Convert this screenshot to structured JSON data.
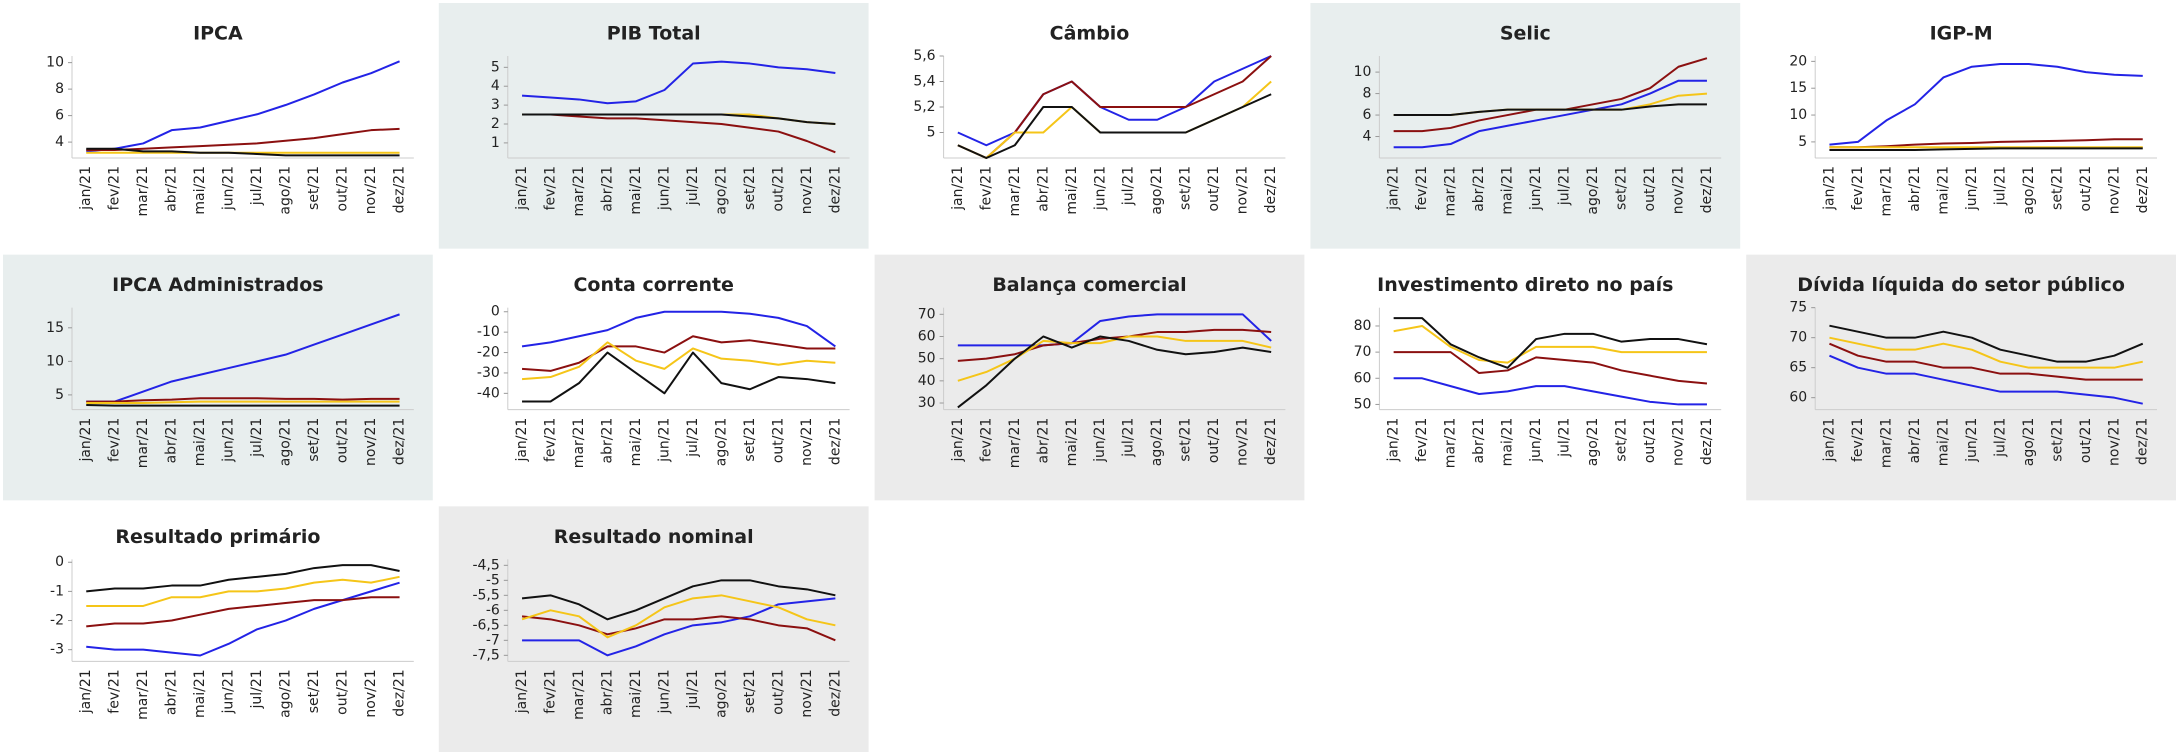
{
  "chart_data": [
    {
      "type": "line",
      "title": "IPCA",
      "categories": [
        "jan/21",
        "fev/21",
        "mar/21",
        "abr/21",
        "mai/21",
        "jun/21",
        "jul/21",
        "ago/21",
        "set/21",
        "out/21",
        "nov/21",
        "dez/21"
      ],
      "ylim": [
        2.8,
        10.5
      ],
      "yticks": [
        4,
        6,
        8,
        10
      ],
      "series": [
        {
          "color": "#2323e6",
          "values": [
            3.3,
            3.5,
            3.9,
            4.9,
            5.1,
            5.6,
            6.1,
            6.8,
            7.6,
            8.5,
            9.2,
            10.1
          ]
        },
        {
          "color": "#8b1010",
          "values": [
            3.4,
            3.4,
            3.5,
            3.6,
            3.7,
            3.8,
            3.9,
            4.1,
            4.3,
            4.6,
            4.9,
            5.0
          ]
        },
        {
          "color": "#f5c518",
          "values": [
            3.2,
            3.2,
            3.2,
            3.2,
            3.2,
            3.2,
            3.2,
            3.2,
            3.2,
            3.2,
            3.2,
            3.2
          ]
        },
        {
          "color": "#111111",
          "values": [
            3.5,
            3.5,
            3.3,
            3.3,
            3.2,
            3.2,
            3.1,
            3.0,
            3.0,
            3.0,
            3.0,
            3.0
          ]
        }
      ]
    },
    {
      "type": "line",
      "title": "PIB Total",
      "background": "#e8eeee",
      "categories": [
        "jan/21",
        "fev/21",
        "mar/21",
        "abr/21",
        "mai/21",
        "jun/21",
        "jul/21",
        "ago/21",
        "set/21",
        "out/21",
        "nov/21",
        "dez/21"
      ],
      "ylim": [
        0.2,
        5.6
      ],
      "yticks": [
        1,
        2,
        3,
        4,
        5
      ],
      "series": [
        {
          "color": "#2323e6",
          "values": [
            3.5,
            3.4,
            3.3,
            3.1,
            3.2,
            3.8,
            5.2,
            5.3,
            5.2,
            5.0,
            4.9,
            4.7
          ]
        },
        {
          "color": "#8b1010",
          "values": [
            2.5,
            2.5,
            2.4,
            2.3,
            2.3,
            2.2,
            2.1,
            2.0,
            1.8,
            1.6,
            1.1,
            0.5
          ]
        },
        {
          "color": "#f5c518",
          "values": [
            2.5,
            2.5,
            2.5,
            2.5,
            2.5,
            2.5,
            2.5,
            2.5,
            2.5,
            2.3,
            2.1,
            2.0
          ]
        },
        {
          "color": "#111111",
          "values": [
            2.5,
            2.5,
            2.5,
            2.5,
            2.5,
            2.5,
            2.5,
            2.5,
            2.4,
            2.3,
            2.1,
            2.0
          ]
        }
      ]
    },
    {
      "type": "line",
      "title": "Câmbio",
      "categories": [
        "jan/21",
        "fev/21",
        "mar/21",
        "abr/21",
        "mai/21",
        "jun/21",
        "jul/21",
        "ago/21",
        "set/21",
        "out/21",
        "nov/21",
        "dez/21"
      ],
      "ylim": [
        4.8,
        5.6
      ],
      "yticks": [
        5,
        {
          "value": 5.2,
          "label": "5,2"
        },
        {
          "value": 5.4,
          "label": "5,4"
        },
        {
          "value": 5.6,
          "label": "5,6"
        }
      ],
      "series": [
        {
          "color": "#2323e6",
          "values": [
            5.0,
            4.9,
            5.0,
            5.3,
            5.4,
            5.2,
            5.1,
            5.1,
            5.2,
            5.4,
            5.5,
            5.6
          ]
        },
        {
          "color": "#8b1010",
          "values": [
            4.9,
            4.8,
            5.0,
            5.3,
            5.4,
            5.2,
            5.2,
            5.2,
            5.2,
            5.3,
            5.4,
            5.6
          ]
        },
        {
          "color": "#f5c518",
          "values": [
            4.9,
            4.8,
            5.0,
            5.0,
            5.2,
            5.0,
            5.0,
            5.0,
            5.0,
            5.1,
            5.2,
            5.4
          ]
        },
        {
          "color": "#111111",
          "values": [
            4.9,
            4.8,
            4.9,
            5.2,
            5.2,
            5.0,
            5.0,
            5.0,
            5.0,
            5.1,
            5.2,
            5.3
          ]
        }
      ]
    },
    {
      "type": "line",
      "title": "Selic",
      "background": "#e8eeee",
      "categories": [
        "jan/21",
        "fev/21",
        "mar/21",
        "abr/21",
        "mai/21",
        "jun/21",
        "jul/21",
        "ago/21",
        "set/21",
        "out/21",
        "nov/21",
        "dez/21"
      ],
      "ylim": [
        2,
        11.5
      ],
      "yticks": [
        4,
        6,
        8,
        10
      ],
      "series": [
        {
          "color": "#2323e6",
          "values": [
            3.0,
            3.0,
            3.3,
            4.5,
            5.0,
            5.5,
            6.0,
            6.5,
            7.0,
            8.0,
            9.2,
            9.2
          ]
        },
        {
          "color": "#8b1010",
          "values": [
            4.5,
            4.5,
            4.8,
            5.5,
            6.0,
            6.5,
            6.5,
            7.0,
            7.5,
            8.5,
            10.5,
            11.3
          ]
        },
        {
          "color": "#f5c518",
          "values": [
            6.0,
            6.0,
            6.0,
            6.3,
            6.5,
            6.5,
            6.5,
            6.5,
            6.5,
            7.0,
            7.8,
            8.0
          ]
        },
        {
          "color": "#111111",
          "values": [
            6.0,
            6.0,
            6.0,
            6.3,
            6.5,
            6.5,
            6.5,
            6.5,
            6.5,
            6.8,
            7.0,
            7.0
          ]
        }
      ]
    },
    {
      "type": "line",
      "title": "IGP-M",
      "categories": [
        "jan/21",
        "fev/21",
        "mar/21",
        "abr/21",
        "mai/21",
        "jun/21",
        "jul/21",
        "ago/21",
        "set/21",
        "out/21",
        "nov/21",
        "dez/21"
      ],
      "ylim": [
        2,
        21
      ],
      "yticks": [
        5,
        10,
        15,
        20
      ],
      "series": [
        {
          "color": "#2323e6",
          "values": [
            4.5,
            5.0,
            9,
            12,
            17,
            19,
            19.5,
            19.5,
            19,
            18,
            17.5,
            17.3
          ]
        },
        {
          "color": "#8b1010",
          "values": [
            4,
            4,
            4.2,
            4.5,
            4.7,
            4.8,
            5,
            5.1,
            5.2,
            5.3,
            5.5,
            5.5
          ]
        },
        {
          "color": "#f5c518",
          "values": [
            4,
            4,
            4,
            4,
            4,
            4,
            4,
            4,
            4,
            4,
            4,
            4
          ]
        },
        {
          "color": "#111111",
          "values": [
            3.5,
            3.5,
            3.5,
            3.5,
            3.6,
            3.7,
            3.8,
            3.8,
            3.8,
            3.8,
            3.8,
            3.8
          ]
        }
      ]
    },
    {
      "type": "line",
      "title": "IPCA Administrados",
      "background": "#e8eeee",
      "categories": [
        "jan/21",
        "fev/21",
        "mar/21",
        "abr/21",
        "mai/21",
        "jun/21",
        "jul/21",
        "ago/21",
        "set/21",
        "out/21",
        "nov/21",
        "dez/21"
      ],
      "ylim": [
        2.8,
        18
      ],
      "yticks": [
        5,
        10,
        15
      ],
      "series": [
        {
          "color": "#2323e6",
          "values": [
            4,
            4,
            5.5,
            7,
            8,
            9,
            10,
            11,
            12.5,
            14,
            15.5,
            17
          ]
        },
        {
          "color": "#8b1010",
          "values": [
            4,
            4,
            4.2,
            4.3,
            4.5,
            4.5,
            4.5,
            4.4,
            4.4,
            4.3,
            4.4,
            4.4
          ]
        },
        {
          "color": "#f5c518",
          "values": [
            3.8,
            3.8,
            3.8,
            3.9,
            4,
            4,
            4,
            4,
            4,
            4,
            4,
            4
          ]
        },
        {
          "color": "#111111",
          "values": [
            3.5,
            3.4,
            3.4,
            3.4,
            3.4,
            3.4,
            3.4,
            3.4,
            3.4,
            3.4,
            3.4,
            3.4
          ]
        }
      ]
    },
    {
      "type": "line",
      "title": "Conta corrente",
      "categories": [
        "jan/21",
        "fev/21",
        "mar/21",
        "abr/21",
        "mai/21",
        "jun/21",
        "jul/21",
        "ago/21",
        "set/21",
        "out/21",
        "nov/21",
        "dez/21"
      ],
      "ylim": [
        -48,
        2
      ],
      "yticks": [
        -40,
        -30,
        -20,
        -10,
        0
      ],
      "series": [
        {
          "color": "#2323e6",
          "values": [
            -17,
            -15,
            -12,
            -9,
            -3,
            0,
            0,
            0,
            -1,
            -3,
            -7,
            -17
          ]
        },
        {
          "color": "#8b1010",
          "values": [
            -28,
            -29,
            -25,
            -17,
            -17,
            -20,
            -12,
            -15,
            -14,
            -16,
            -18,
            -18
          ]
        },
        {
          "color": "#f5c518",
          "values": [
            -33,
            -32,
            -27,
            -15,
            -24,
            -28,
            -18,
            -23,
            -24,
            -26,
            -24,
            -25
          ]
        },
        {
          "color": "#111111",
          "values": [
            -44,
            -44,
            -35,
            -20,
            -30,
            -40,
            -20,
            -35,
            -38,
            -32,
            -33,
            -35
          ]
        }
      ]
    },
    {
      "type": "line",
      "title": "Balança comercial",
      "background": "#ebebeb",
      "categories": [
        "jan/21",
        "fev/21",
        "mar/21",
        "abr/21",
        "mai/21",
        "jun/21",
        "jul/21",
        "ago/21",
        "set/21",
        "out/21",
        "nov/21",
        "dez/21"
      ],
      "ylim": [
        27,
        73
      ],
      "yticks": [
        30,
        40,
        50,
        60,
        70
      ],
      "series": [
        {
          "color": "#2323e6",
          "values": [
            56,
            56,
            56,
            56,
            57,
            67,
            69,
            70,
            70,
            70,
            70,
            58
          ]
        },
        {
          "color": "#8b1010",
          "values": [
            49,
            50,
            52,
            56,
            57,
            59,
            60,
            62,
            62,
            63,
            63,
            62
          ]
        },
        {
          "color": "#f5c518",
          "values": [
            40,
            44,
            50,
            58,
            57,
            57,
            60,
            60,
            58,
            58,
            58,
            55
          ]
        },
        {
          "color": "#111111",
          "values": [
            28,
            38,
            50,
            60,
            55,
            60,
            58,
            54,
            52,
            53,
            55,
            53
          ]
        }
      ]
    },
    {
      "type": "line",
      "title": "Investimento direto no país",
      "categories": [
        "jan/21",
        "fev/21",
        "mar/21",
        "abr/21",
        "mai/21",
        "jun/21",
        "jul/21",
        "ago/21",
        "set/21",
        "out/21",
        "nov/21",
        "dez/21"
      ],
      "ylim": [
        48,
        87
      ],
      "yticks": [
        50,
        60,
        70,
        80
      ],
      "series": [
        {
          "color": "#2323e6",
          "values": [
            60,
            60,
            57,
            54,
            55,
            57,
            57,
            55,
            53,
            51,
            50,
            50
          ]
        },
        {
          "color": "#8b1010",
          "values": [
            70,
            70,
            70,
            62,
            63,
            68,
            67,
            66,
            63,
            61,
            59,
            58
          ]
        },
        {
          "color": "#f5c518",
          "values": [
            78,
            80,
            72,
            67,
            66,
            72,
            72,
            72,
            70,
            70,
            70,
            70
          ]
        },
        {
          "color": "#111111",
          "values": [
            83,
            83,
            73,
            68,
            64,
            75,
            77,
            77,
            74,
            75,
            75,
            73
          ]
        }
      ]
    },
    {
      "type": "line",
      "title": "Dívida líquida do setor público",
      "background": "#ebebeb",
      "categories": [
        "jan/21",
        "fev/21",
        "mar/21",
        "abr/21",
        "mai/21",
        "jun/21",
        "jul/21",
        "ago/21",
        "set/21",
        "out/21",
        "nov/21",
        "dez/21"
      ],
      "ylim": [
        58,
        75
      ],
      "yticks": [
        60,
        65,
        70,
        75
      ],
      "series": [
        {
          "color": "#2323e6",
          "values": [
            67,
            65,
            64,
            64,
            63,
            62,
            61,
            61,
            61,
            60.5,
            60,
            59
          ]
        },
        {
          "color": "#8b1010",
          "values": [
            69,
            67,
            66,
            66,
            65,
            65,
            64,
            64,
            63.5,
            63,
            63,
            63
          ]
        },
        {
          "color": "#f5c518",
          "values": [
            70,
            69,
            68,
            68,
            69,
            68,
            66,
            65,
            65,
            65,
            65,
            66
          ]
        },
        {
          "color": "#111111",
          "values": [
            72,
            71,
            70,
            70,
            71,
            70,
            68,
            67,
            66,
            66,
            67,
            69
          ]
        }
      ]
    },
    {
      "type": "line",
      "title": "Resultado primário",
      "categories": [
        "jan/21",
        "fev/21",
        "mar/21",
        "abr/21",
        "mai/21",
        "jun/21",
        "jul/21",
        "ago/21",
        "set/21",
        "out/21",
        "nov/21",
        "dez/21"
      ],
      "ylim": [
        -3.4,
        0.1
      ],
      "yticks": [
        -3,
        -2,
        -1,
        0
      ],
      "series": [
        {
          "color": "#2323e6",
          "values": [
            -2.9,
            -3.0,
            -3.0,
            -3.1,
            -3.2,
            -2.8,
            -2.3,
            -2.0,
            -1.6,
            -1.3,
            -1.0,
            -0.7
          ]
        },
        {
          "color": "#8b1010",
          "values": [
            -2.2,
            -2.1,
            -2.1,
            -2.0,
            -1.8,
            -1.6,
            -1.5,
            -1.4,
            -1.3,
            -1.3,
            -1.2,
            -1.2
          ]
        },
        {
          "color": "#f5c518",
          "values": [
            -1.5,
            -1.5,
            -1.5,
            -1.2,
            -1.2,
            -1.0,
            -1.0,
            -0.9,
            -0.7,
            -0.6,
            -0.7,
            -0.5
          ]
        },
        {
          "color": "#111111",
          "values": [
            -1.0,
            -0.9,
            -0.9,
            -0.8,
            -0.8,
            -0.6,
            -0.5,
            -0.4,
            -0.2,
            -0.1,
            -0.1,
            -0.3
          ]
        }
      ]
    },
    {
      "type": "line",
      "title": "Resultado nominal",
      "background": "#ebebeb",
      "categories": [
        "jan/21",
        "fev/21",
        "mar/21",
        "abr/21",
        "mai/21",
        "jun/21",
        "jul/21",
        "ago/21",
        "set/21",
        "out/21",
        "nov/21",
        "dez/21"
      ],
      "ylim": [
        -7.7,
        -4.3
      ],
      "yticks": [
        {
          "value": -7.5,
          "label": "-7,5"
        },
        -7,
        {
          "value": -6.5,
          "label": "-6,5"
        },
        -6,
        {
          "value": -5.5,
          "label": "-5,5"
        },
        -5,
        {
          "value": -4.5,
          "label": "-4,5"
        }
      ],
      "series": [
        {
          "color": "#2323e6",
          "values": [
            -7.0,
            -7.0,
            -7.0,
            -7.5,
            -7.2,
            -6.8,
            -6.5,
            -6.4,
            -6.2,
            -5.8,
            -5.7,
            -5.6
          ]
        },
        {
          "color": "#8b1010",
          "values": [
            -6.2,
            -6.3,
            -6.5,
            -6.8,
            -6.6,
            -6.3,
            -6.3,
            -6.2,
            -6.3,
            -6.5,
            -6.6,
            -7.0
          ]
        },
        {
          "color": "#f5c518",
          "values": [
            -6.3,
            -6.0,
            -6.2,
            -6.9,
            -6.5,
            -5.9,
            -5.6,
            -5.5,
            -5.7,
            -5.9,
            -6.3,
            -6.5
          ]
        },
        {
          "color": "#111111",
          "values": [
            -5.6,
            -5.5,
            -5.8,
            -6.3,
            -6.0,
            -5.6,
            -5.2,
            -5.0,
            -5.0,
            -5.2,
            -5.3,
            -5.5
          ]
        }
      ]
    }
  ]
}
